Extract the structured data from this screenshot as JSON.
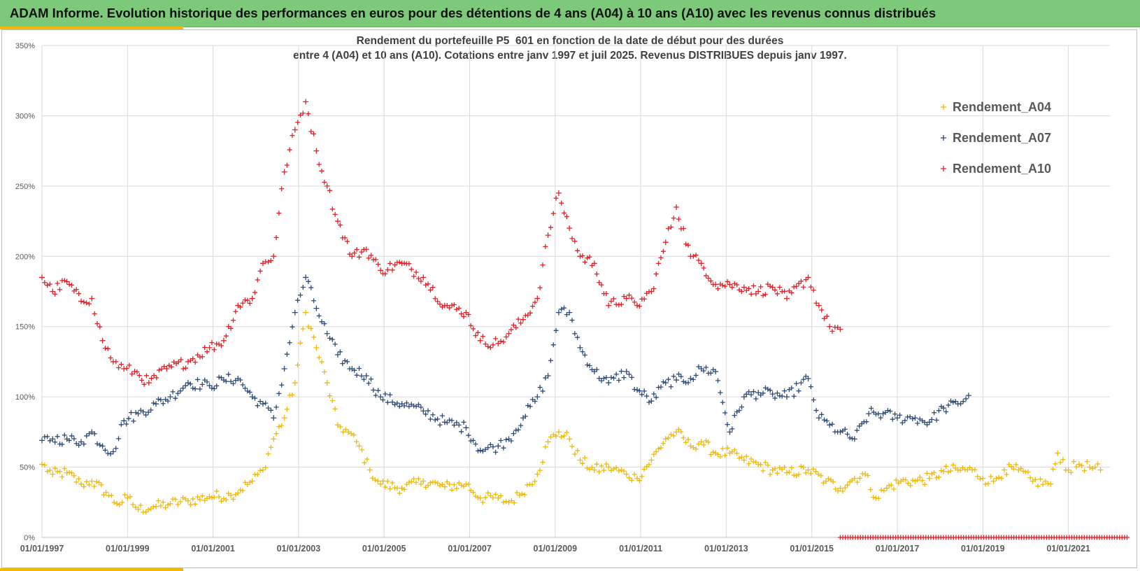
{
  "banner": {
    "title": "ADAM Informe. Evolution historique des performances en euros pour des détentions de 4 ans (A04) à 10 ans (A10) avec les revenus connus distribués"
  },
  "chart_data": {
    "type": "scatter",
    "title_line1": "Rendement du portefeuille P5_601 en fonction de la date de début pour des durées",
    "title_line2": "entre 4 (A04) et 10 ans (A10). Cotations entre janv 1997 et juil 2025. Revenus DISTRIBUES depuis janv 1997.",
    "xlabel": "",
    "ylabel": "",
    "x_range": [
      "1997-01-01",
      "2022-06-01"
    ],
    "ylim": [
      0,
      350
    ],
    "y_ticks": [
      {
        "value": 0,
        "label": "0%"
      },
      {
        "value": 50,
        "label": "50%"
      },
      {
        "value": 100,
        "label": "100%"
      },
      {
        "value": 150,
        "label": "150%"
      },
      {
        "value": 200,
        "label": "200%"
      },
      {
        "value": 250,
        "label": "250%"
      },
      {
        "value": 300,
        "label": "300%"
      },
      {
        "value": 350,
        "label": "350%"
      }
    ],
    "x_ticks": [
      {
        "date": "1997-01-01",
        "label": "01/01/1997"
      },
      {
        "date": "1999-01-01",
        "label": "01/01/1999"
      },
      {
        "date": "2001-01-01",
        "label": "01/01/2001"
      },
      {
        "date": "2003-01-01",
        "label": "01/01/2003"
      },
      {
        "date": "2005-01-01",
        "label": "01/01/2005"
      },
      {
        "date": "2007-01-01",
        "label": "01/01/2007"
      },
      {
        "date": "2009-01-01",
        "label": "01/01/2009"
      },
      {
        "date": "2011-01-01",
        "label": "01/01/2011"
      },
      {
        "date": "2013-01-01",
        "label": "01/01/2013"
      },
      {
        "date": "2015-01-01",
        "label": "01/01/2015"
      },
      {
        "date": "2017-01-01",
        "label": "01/01/2017"
      },
      {
        "date": "2019-01-01",
        "label": "01/01/2019"
      },
      {
        "date": "2021-01-01",
        "label": "01/01/2021"
      }
    ],
    "grid": true,
    "legend_position": "right",
    "marker": "+",
    "series": [
      {
        "name": "Rendement_A04",
        "color": "#f2b900",
        "points": [
          [
            "1997-01",
            52
          ],
          [
            "1997-04",
            45
          ],
          [
            "1997-08",
            46
          ],
          [
            "1997-12",
            38
          ],
          [
            "1998-03",
            40
          ],
          [
            "1998-07",
            32
          ],
          [
            "1998-10",
            24
          ],
          [
            "1999-01",
            28
          ],
          [
            "1999-04",
            20
          ],
          [
            "1999-09",
            22
          ],
          [
            "2000-01",
            24
          ],
          [
            "2000-06",
            26
          ],
          [
            "2000-12",
            29
          ],
          [
            "2001-06",
            30
          ],
          [
            "2001-12",
            40
          ],
          [
            "2002-03",
            48
          ],
          [
            "2002-06",
            70
          ],
          [
            "2002-09",
            85
          ],
          [
            "2002-12",
            110
          ],
          [
            "2003-03",
            160
          ],
          [
            "2003-06",
            135
          ],
          [
            "2003-09",
            110
          ],
          [
            "2003-12",
            80
          ],
          [
            "2004-03",
            75
          ],
          [
            "2004-06",
            65
          ],
          [
            "2004-09",
            48
          ],
          [
            "2004-12",
            38
          ],
          [
            "2005-06",
            35
          ],
          [
            "2005-12",
            40
          ],
          [
            "2006-06",
            36
          ],
          [
            "2006-12",
            38
          ],
          [
            "2007-04",
            28
          ],
          [
            "2007-09",
            28
          ],
          [
            "2007-12",
            25
          ],
          [
            "2008-03",
            30
          ],
          [
            "2008-08",
            45
          ],
          [
            "2008-11",
            68
          ],
          [
            "2009-02",
            75
          ],
          [
            "2009-05",
            70
          ],
          [
            "2009-08",
            55
          ],
          [
            "2009-12",
            48
          ],
          [
            "2010-04",
            50
          ],
          [
            "2010-09",
            45
          ],
          [
            "2010-12",
            42
          ],
          [
            "2011-04",
            55
          ],
          [
            "2011-08",
            70
          ],
          [
            "2011-11",
            75
          ],
          [
            "2012-03",
            65
          ],
          [
            "2012-06",
            68
          ],
          [
            "2012-10",
            60
          ],
          [
            "2013-02",
            60
          ],
          [
            "2013-06",
            55
          ],
          [
            "2013-10",
            52
          ],
          [
            "2014-02",
            48
          ],
          [
            "2014-06",
            46
          ],
          [
            "2014-12",
            48
          ],
          [
            "2015-05",
            40
          ],
          [
            "2015-09",
            35
          ],
          [
            "2016-01",
            42
          ],
          [
            "2016-04",
            45
          ],
          [
            "2016-07",
            28
          ],
          [
            "2016-10",
            35
          ],
          [
            "2017-02",
            40
          ],
          [
            "2017-06",
            40
          ],
          [
            "2017-10",
            42
          ],
          [
            "2018-02",
            47
          ],
          [
            "2018-06",
            48
          ],
          [
            "2018-10",
            48
          ],
          [
            "2019-01",
            42
          ],
          [
            "2019-04",
            40
          ],
          [
            "2019-07",
            48
          ],
          [
            "2019-11",
            48
          ],
          [
            "2020-03",
            40
          ],
          [
            "2020-08",
            38
          ],
          [
            "2020-10",
            60
          ],
          [
            "2021-01",
            48
          ],
          [
            "2021-04",
            52
          ],
          [
            "2021-07",
            50
          ],
          [
            "2021-10",
            48
          ]
        ]
      },
      {
        "name": "Rendement_A07",
        "color": "#2e4a76",
        "points": [
          [
            "1997-01",
            69
          ],
          [
            "1997-04",
            70
          ],
          [
            "1997-08",
            70
          ],
          [
            "1997-12",
            68
          ],
          [
            "1998-03",
            75
          ],
          [
            "1998-06",
            65
          ],
          [
            "1998-09",
            61
          ],
          [
            "1998-12",
            83
          ],
          [
            "1999-04",
            88
          ],
          [
            "1999-09",
            95
          ],
          [
            "2000-01",
            100
          ],
          [
            "2000-06",
            110
          ],
          [
            "2000-12",
            108
          ],
          [
            "2001-04",
            112
          ],
          [
            "2001-08",
            113
          ],
          [
            "2001-12",
            100
          ],
          [
            "2002-03",
            95
          ],
          [
            "2002-06",
            85
          ],
          [
            "2002-09",
            120
          ],
          [
            "2002-12",
            160
          ],
          [
            "2003-03",
            185
          ],
          [
            "2003-06",
            163
          ],
          [
            "2003-09",
            145
          ],
          [
            "2003-12",
            130
          ],
          [
            "2004-04",
            120
          ],
          [
            "2004-08",
            115
          ],
          [
            "2004-12",
            100
          ],
          [
            "2005-06",
            95
          ],
          [
            "2005-12",
            90
          ],
          [
            "2006-06",
            82
          ],
          [
            "2006-12",
            78
          ],
          [
            "2007-04",
            62
          ],
          [
            "2007-09",
            65
          ],
          [
            "2007-12",
            70
          ],
          [
            "2008-04",
            85
          ],
          [
            "2008-08",
            100
          ],
          [
            "2008-11",
            115
          ],
          [
            "2009-02",
            160
          ],
          [
            "2009-05",
            160
          ],
          [
            "2009-08",
            135
          ],
          [
            "2009-12",
            118
          ],
          [
            "2010-04",
            110
          ],
          [
            "2010-09",
            118
          ],
          [
            "2010-12",
            105
          ],
          [
            "2011-04",
            97
          ],
          [
            "2011-08",
            110
          ],
          [
            "2011-11",
            112
          ],
          [
            "2012-03",
            113
          ],
          [
            "2012-06",
            120
          ],
          [
            "2012-10",
            118
          ],
          [
            "2013-02",
            75
          ],
          [
            "2013-06",
            100
          ],
          [
            "2013-10",
            103
          ],
          [
            "2014-02",
            102
          ],
          [
            "2014-06",
            100
          ],
          [
            "2014-12",
            113
          ],
          [
            "2015-03",
            85
          ],
          [
            "2015-06",
            80
          ],
          [
            "2015-09",
            75
          ],
          [
            "2016-01",
            70
          ],
          [
            "2016-05",
            88
          ],
          [
            "2016-09",
            88
          ],
          [
            "2017-01",
            85
          ],
          [
            "2017-06",
            85
          ],
          [
            "2017-10",
            82
          ],
          [
            "2018-02",
            92
          ],
          [
            "2018-06",
            95
          ],
          [
            "2018-09",
            101
          ]
        ]
      },
      {
        "name": "Rendement_A10",
        "color": "#e41f26",
        "points": [
          [
            "1997-01",
            185
          ],
          [
            "1997-04",
            175
          ],
          [
            "1997-08",
            182
          ],
          [
            "1997-12",
            168
          ],
          [
            "1998-03",
            170
          ],
          [
            "1998-06",
            140
          ],
          [
            "1998-09",
            125
          ],
          [
            "1998-12",
            120
          ],
          [
            "1999-03",
            118
          ],
          [
            "1999-07",
            110
          ],
          [
            "1999-12",
            120
          ],
          [
            "2000-06",
            125
          ],
          [
            "2000-12",
            135
          ],
          [
            "2001-04",
            140
          ],
          [
            "2001-08",
            165
          ],
          [
            "2001-12",
            170
          ],
          [
            "2002-03",
            195
          ],
          [
            "2002-06",
            200
          ],
          [
            "2002-09",
            260
          ],
          [
            "2002-12",
            290
          ],
          [
            "2003-03",
            310
          ],
          [
            "2003-06",
            275
          ],
          [
            "2003-09",
            250
          ],
          [
            "2003-12",
            225
          ],
          [
            "2004-04",
            200
          ],
          [
            "2004-08",
            205
          ],
          [
            "2004-12",
            190
          ],
          [
            "2005-06",
            195
          ],
          [
            "2005-12",
            185
          ],
          [
            "2006-06",
            165
          ],
          [
            "2006-12",
            160
          ],
          [
            "2007-04",
            140
          ],
          [
            "2007-09",
            138
          ],
          [
            "2007-12",
            145
          ],
          [
            "2008-04",
            155
          ],
          [
            "2008-08",
            170
          ],
          [
            "2008-11",
            215
          ],
          [
            "2009-02",
            245
          ],
          [
            "2009-05",
            220
          ],
          [
            "2009-08",
            200
          ],
          [
            "2009-12",
            195
          ],
          [
            "2010-04",
            165
          ],
          [
            "2010-09",
            170
          ],
          [
            "2010-12",
            165
          ],
          [
            "2011-04",
            175
          ],
          [
            "2011-08",
            210
          ],
          [
            "2011-11",
            235
          ],
          [
            "2012-03",
            200
          ],
          [
            "2012-06",
            195
          ],
          [
            "2012-10",
            180
          ],
          [
            "2013-02",
            180
          ],
          [
            "2013-06",
            178
          ],
          [
            "2013-10",
            175
          ],
          [
            "2014-02",
            178
          ],
          [
            "2014-06",
            170
          ],
          [
            "2014-12",
            185
          ],
          [
            "2015-03",
            165
          ],
          [
            "2015-06",
            150
          ],
          [
            "2015-09",
            148
          ]
        ],
        "flat_zero_range": [
          "2015-09",
          "2022-06"
        ]
      }
    ]
  }
}
